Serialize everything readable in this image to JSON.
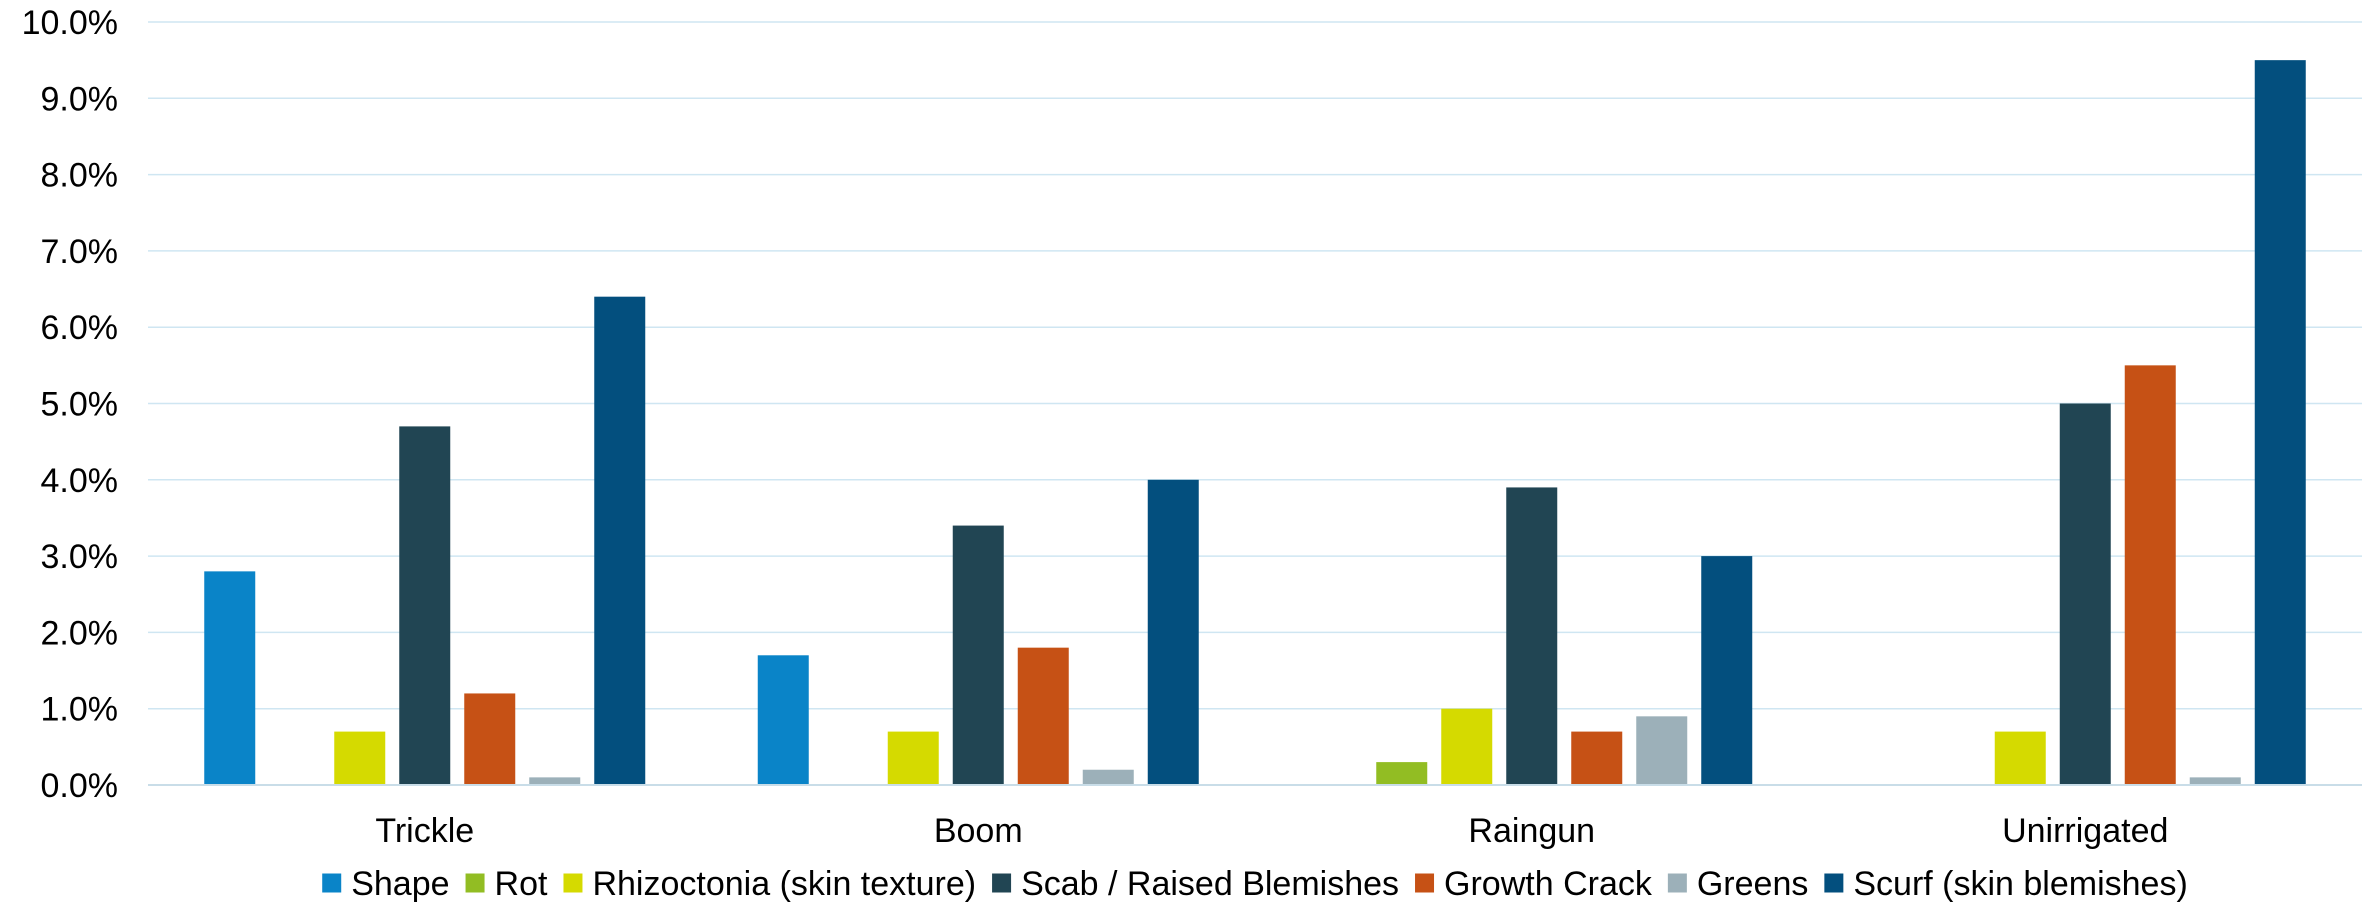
{
  "chart_data": {
    "type": "bar",
    "title": "",
    "xlabel": "",
    "ylabel": "",
    "ylim": [
      0,
      10
    ],
    "yticks": [
      "0.0%",
      "1.0%",
      "2.0%",
      "3.0%",
      "4.0%",
      "5.0%",
      "6.0%",
      "7.0%",
      "8.0%",
      "9.0%",
      "10.0%"
    ],
    "grid": true,
    "legend_position": "bottom",
    "categories": [
      "Trickle",
      "Boom",
      "Raingun",
      "Unirrigated"
    ],
    "series": [
      {
        "name": "Shape",
        "color": "#0a84c8",
        "values": [
          2.8,
          1.7,
          0.0,
          0.0
        ]
      },
      {
        "name": "Rot",
        "color": "#92bd23",
        "values": [
          0.0,
          0.0,
          0.3,
          0.0
        ]
      },
      {
        "name": "Rhizoctonia (skin texture)",
        "color": "#d5da00",
        "values": [
          0.7,
          0.7,
          1.0,
          0.7
        ]
      },
      {
        "name": "Scab / Raised Blemishes",
        "color": "#214553",
        "values": [
          4.7,
          3.4,
          3.9,
          5.0
        ]
      },
      {
        "name": "Growth Crack",
        "color": "#c65115",
        "values": [
          1.2,
          1.8,
          0.7,
          5.5
        ]
      },
      {
        "name": "Greens",
        "color": "#9cb0b9",
        "values": [
          0.1,
          0.2,
          0.9,
          0.1
        ]
      },
      {
        "name": "Scurf  (skin blemishes)",
        "color": "#034f7e",
        "values": [
          6.4,
          4.0,
          3.0,
          9.5
        ]
      }
    ]
  }
}
